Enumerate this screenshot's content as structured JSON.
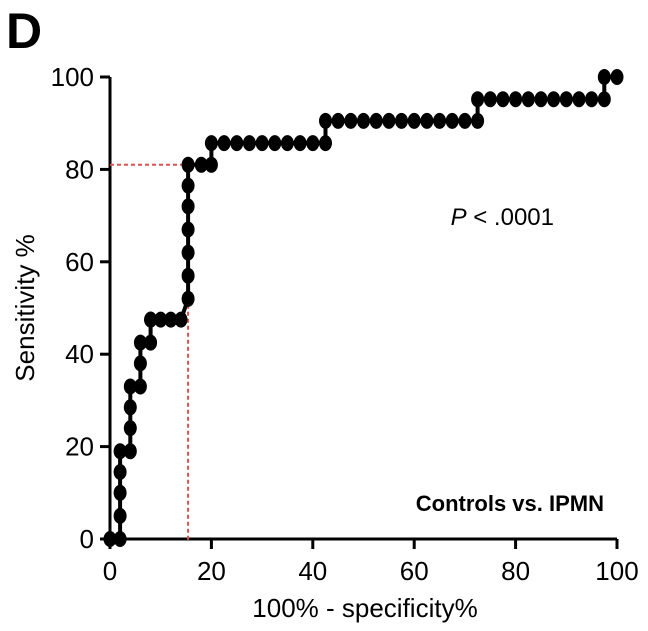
{
  "chart_data": {
    "type": "line",
    "panel_label": "D",
    "xlabel": "100% - specificity%",
    "ylabel": "Sensitivity %",
    "xlim": [
      0,
      100
    ],
    "ylim": [
      0,
      100
    ],
    "xticks": [
      "0",
      "20",
      "40",
      "60",
      "80",
      "100"
    ],
    "yticks": [
      "0",
      "20",
      "40",
      "60",
      "80",
      "100"
    ],
    "grid": false,
    "annotations": {
      "p_italic": "P",
      "p_rest": " < .0001",
      "comparison": "Controls vs. IPMN"
    },
    "cutoff": {
      "x": 15.4,
      "y": 81
    },
    "series": [
      {
        "x": [
          0,
          2,
          2,
          2,
          2,
          2,
          4,
          4,
          4,
          4,
          6,
          6,
          6,
          8,
          8,
          8,
          10,
          12,
          14,
          15.4,
          15.4,
          15.4,
          15.4,
          15.4,
          15.4,
          15.4,
          18,
          20,
          20,
          22.5,
          25,
          27.5,
          30,
          32.5,
          35,
          37.5,
          40,
          42.5,
          42.5,
          45,
          47.5,
          50,
          52.5,
          55,
          57.5,
          60,
          62.5,
          65,
          67.5,
          70,
          72.5,
          72.5,
          75,
          77.5,
          80,
          82.5,
          85,
          87.5,
          90,
          92.5,
          95,
          97.5,
          97.5,
          100
        ],
        "y": [
          0,
          0,
          5,
          10,
          14.5,
          19,
          19,
          24,
          28.5,
          33,
          33,
          38,
          42.5,
          42.5,
          47.5,
          47.5,
          47.5,
          47.5,
          47.5,
          52,
          57,
          62,
          67,
          72,
          76.5,
          81,
          81,
          81,
          85.7,
          85.7,
          85.7,
          85.7,
          85.7,
          85.7,
          85.7,
          85.7,
          85.7,
          85.7,
          90.5,
          90.5,
          90.5,
          90.5,
          90.5,
          90.5,
          90.5,
          90.5,
          90.5,
          90.5,
          90.5,
          90.5,
          90.5,
          95.2,
          95.2,
          95.2,
          95.2,
          95.2,
          95.2,
          95.2,
          95.2,
          95.2,
          95.2,
          95.2,
          100,
          100
        ]
      }
    ]
  },
  "colors": {
    "points": "#000000",
    "axes": "#000000",
    "cutoff_line": "#d9534f"
  }
}
